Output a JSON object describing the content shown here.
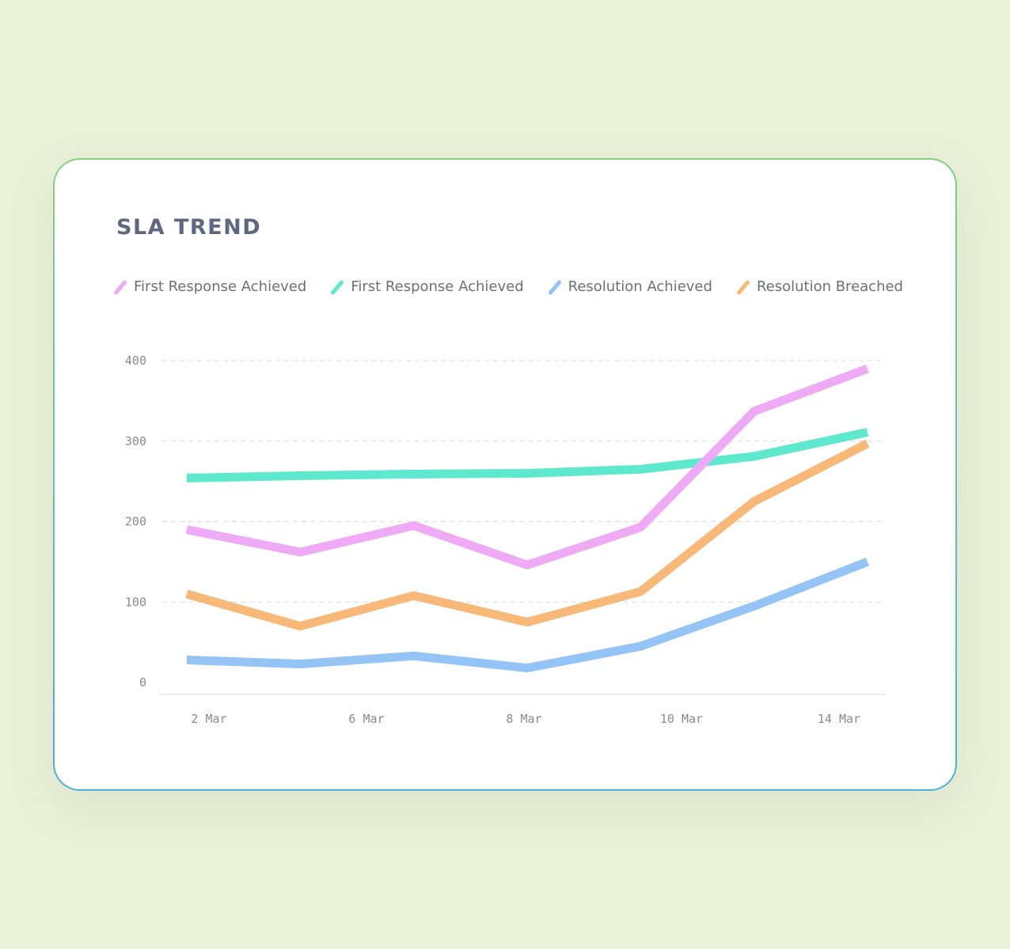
{
  "card": {
    "title": "SLA TREND"
  },
  "legend": [
    {
      "label": "First Response Achieved",
      "color": "#eeaaf5"
    },
    {
      "label": "First Response Achieved",
      "color": "#5ee8cd"
    },
    {
      "label": "Resolution Achieved",
      "color": "#94c4f5"
    },
    {
      "label": "Resolution Breached",
      "color": "#f8b878"
    }
  ],
  "chart_data": {
    "type": "line",
    "title": "SLA TREND",
    "xlabel": "",
    "ylabel": "",
    "ylim": [
      0,
      400
    ],
    "yticks": [
      0,
      100,
      200,
      300,
      400
    ],
    "x_tick_labels": [
      "2 Mar",
      "6 Mar",
      "8 Mar",
      "10 Mar",
      "14 Mar"
    ],
    "x": [
      1,
      2,
      3,
      4,
      5,
      6,
      7
    ],
    "grid": "horizontal dashed",
    "legend_position": "top",
    "series": [
      {
        "name": "First Response Achieved",
        "color": "#eeaaf5",
        "values": [
          190,
          162,
          195,
          146,
          193,
          337,
          390
        ]
      },
      {
        "name": "First Response Achieved",
        "color": "#5ee8cd",
        "values": [
          254,
          257,
          259,
          260,
          265,
          281,
          311
        ]
      },
      {
        "name": "Resolution Achieved",
        "color": "#94c4f5",
        "values": [
          28,
          23,
          33,
          18,
          45,
          95,
          150
        ]
      },
      {
        "name": "Resolution Breached",
        "color": "#f8b878",
        "values": [
          110,
          70,
          108,
          75,
          113,
          225,
          297
        ]
      }
    ]
  }
}
